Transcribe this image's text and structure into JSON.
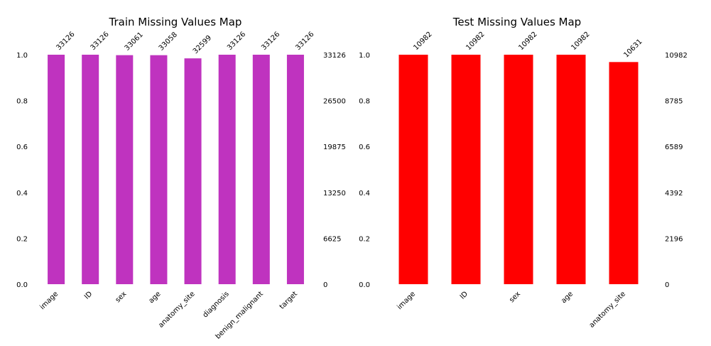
{
  "chart_data": [
    {
      "type": "bar",
      "title": "Train Missing Values Map",
      "color": "#bf33bf",
      "total": 33126,
      "ylim": [
        0,
        1
      ],
      "yticks_left": [
        "0.0",
        "0.2",
        "0.4",
        "0.6",
        "0.8",
        "1.0"
      ],
      "yticks_right": [
        "0",
        "6625",
        "13250",
        "19875",
        "26500",
        "33126"
      ],
      "categories": [
        "image",
        "ID",
        "sex",
        "age",
        "anatomy_site",
        "diagnosis",
        "benign_malignant",
        "target"
      ],
      "values": [
        33126,
        33126,
        33061,
        33058,
        32599,
        33126,
        33126,
        33126
      ],
      "value_labels": [
        "33126",
        "33126",
        "33061",
        "33058",
        "32599",
        "33126",
        "33126",
        "33126"
      ]
    },
    {
      "type": "bar",
      "title": "Test Missing Values Map",
      "color": "#ff0000",
      "total": 10982,
      "ylim": [
        0,
        1
      ],
      "yticks_left": [
        "0.0",
        "0.2",
        "0.4",
        "0.6",
        "0.8",
        "1.0"
      ],
      "yticks_right": [
        "0",
        "2196",
        "4392",
        "6589",
        "8785",
        "10982"
      ],
      "categories": [
        "image",
        "ID",
        "sex",
        "age",
        "anatomy_site"
      ],
      "values": [
        10982,
        10982,
        10982,
        10982,
        10631
      ],
      "value_labels": [
        "10982",
        "10982",
        "10982",
        "10982",
        "10631"
      ]
    }
  ]
}
